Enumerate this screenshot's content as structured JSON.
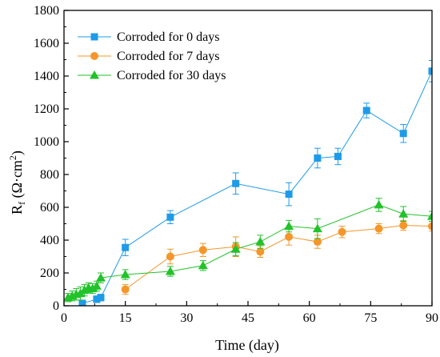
{
  "chart_data": {
    "type": "line",
    "xlabel": "Time (day)",
    "ylabel": {
      "base": "R",
      "sub": "f",
      "unit_open": " (Ω·cm",
      "unit_sup": "2",
      "unit_close": ")"
    },
    "xlim": [
      0,
      90
    ],
    "ylim": [
      0,
      1800
    ],
    "xticks": [
      0,
      15,
      30,
      45,
      60,
      75,
      90
    ],
    "yticks": [
      0,
      200,
      400,
      600,
      800,
      1000,
      1200,
      1400,
      1600,
      1800
    ],
    "grid": false,
    "legend": "top-left",
    "series": [
      {
        "name": "Corroded for 0 days",
        "color": "#1e9be8",
        "marker": "square",
        "points": [
          {
            "x": 4.5,
            "y": 15,
            "err": 10
          },
          {
            "x": 8,
            "y": 40,
            "err": 20
          },
          {
            "x": 9,
            "y": 50,
            "err": 20
          },
          {
            "x": 15,
            "y": 355,
            "err": 50
          },
          {
            "x": 26,
            "y": 540,
            "err": 40
          },
          {
            "x": 42,
            "y": 745,
            "err": 65
          },
          {
            "x": 55,
            "y": 680,
            "err": 70
          },
          {
            "x": 62,
            "y": 900,
            "err": 60
          },
          {
            "x": 67,
            "y": 910,
            "err": 50
          },
          {
            "x": 74,
            "y": 1190,
            "err": 45
          },
          {
            "x": 83,
            "y": 1050,
            "err": 55
          },
          {
            "x": 90,
            "y": 1430,
            "err": 65
          }
        ]
      },
      {
        "name": "Corroded for 7 days",
        "color": "#f5962a",
        "marker": "circle",
        "points": [
          {
            "x": 15,
            "y": 100,
            "err": 30
          },
          {
            "x": 26,
            "y": 300,
            "err": 45
          },
          {
            "x": 34,
            "y": 340,
            "err": 40
          },
          {
            "x": 42,
            "y": 360,
            "err": 60
          },
          {
            "x": 48,
            "y": 330,
            "err": 35
          },
          {
            "x": 55,
            "y": 420,
            "err": 50
          },
          {
            "x": 62,
            "y": 390,
            "err": 40
          },
          {
            "x": 68,
            "y": 450,
            "err": 35
          },
          {
            "x": 77,
            "y": 470,
            "err": 30
          },
          {
            "x": 83,
            "y": 490,
            "err": 30
          },
          {
            "x": 90,
            "y": 485,
            "err": 30
          }
        ]
      },
      {
        "name": "Corroded for 30 days",
        "color": "#22c22a",
        "marker": "triangle",
        "points": [
          {
            "x": 1,
            "y": 50,
            "err": 25
          },
          {
            "x": 2,
            "y": 60,
            "err": 30
          },
          {
            "x": 3,
            "y": 70,
            "err": 35
          },
          {
            "x": 4,
            "y": 75,
            "err": 40
          },
          {
            "x": 5,
            "y": 95,
            "err": 35
          },
          {
            "x": 6,
            "y": 110,
            "err": 30
          },
          {
            "x": 7,
            "y": 105,
            "err": 30
          },
          {
            "x": 8,
            "y": 120,
            "err": 30
          },
          {
            "x": 9,
            "y": 170,
            "err": 30
          },
          {
            "x": 15,
            "y": 190,
            "err": 30
          },
          {
            "x": 26,
            "y": 210,
            "err": 30
          },
          {
            "x": 34,
            "y": 245,
            "err": 30
          },
          {
            "x": 42,
            "y": 345,
            "err": 40
          },
          {
            "x": 48,
            "y": 390,
            "err": 40
          },
          {
            "x": 55,
            "y": 485,
            "err": 35
          },
          {
            "x": 62,
            "y": 470,
            "err": 60
          },
          {
            "x": 77,
            "y": 615,
            "err": 40
          },
          {
            "x": 83,
            "y": 560,
            "err": 45
          },
          {
            "x": 90,
            "y": 545,
            "err": 30
          }
        ]
      }
    ]
  }
}
